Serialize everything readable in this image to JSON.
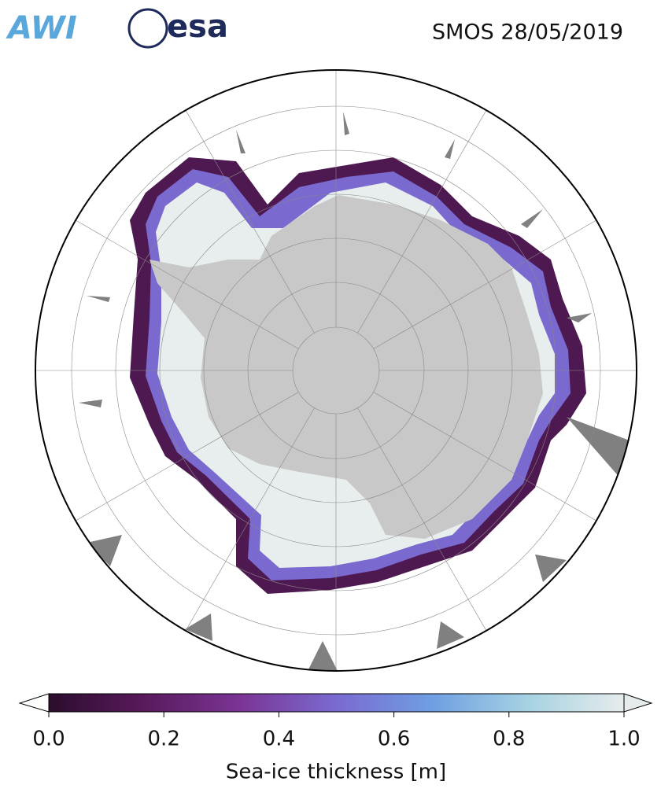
{
  "header": {
    "logos": [
      "AWI",
      "esa"
    ],
    "title": "SMOS 28/05/2019"
  },
  "colorbar": {
    "label": "Sea-ice thickness [m]",
    "lim": [
      0,
      1
    ],
    "ticks": [
      {
        "value": 0,
        "label": "0.0"
      },
      {
        "value": 0.2,
        "label": "0.2"
      },
      {
        "value": 0.4,
        "label": "0.4"
      },
      {
        "value": 0.6,
        "label": "0.6"
      },
      {
        "value": 0.8,
        "label": "0.8"
      },
      {
        "value": 1,
        "label": "1.0"
      }
    ],
    "colors": [
      "#2a0d2c",
      "#5a1a5c",
      "#7a3595",
      "#7a6ad0",
      "#6f9fe2",
      "#a6d2e2",
      "#e6ecec"
    ]
  }
}
